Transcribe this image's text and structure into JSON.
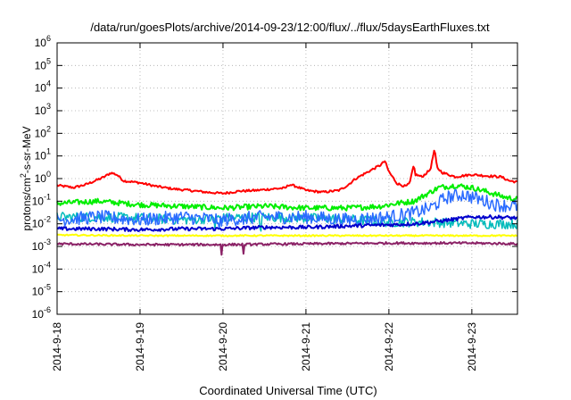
{
  "chart_data": {
    "type": "line",
    "title": "/data/run/goesPlots/archive/2014-09-23/12:00/flux/../flux/5daysEarthFluxes.txt",
    "xlabel": "Coordinated Universal Time (UTC)",
    "ylabel_parts": [
      "protons/cm",
      "2",
      "-s-sr-MeV"
    ],
    "yscale": "log",
    "ylim": [
      1e-06,
      1000000.0
    ],
    "y_ticks": [
      {
        "base": "10",
        "exp": "-6",
        "value": 1e-06
      },
      {
        "base": "10",
        "exp": "-5",
        "value": 1e-05
      },
      {
        "base": "10",
        "exp": "-4",
        "value": 0.0001
      },
      {
        "base": "10",
        "exp": "-3",
        "value": 0.001
      },
      {
        "base": "10",
        "exp": "-2",
        "value": 0.01
      },
      {
        "base": "10",
        "exp": "-1",
        "value": 0.1
      },
      {
        "base": "10",
        "exp": "0",
        "value": 1
      },
      {
        "base": "10",
        "exp": "1",
        "value": 10
      },
      {
        "base": "10",
        "exp": "2",
        "value": 100
      },
      {
        "base": "10",
        "exp": "3",
        "value": 1000
      },
      {
        "base": "10",
        "exp": "4",
        "value": 10000
      },
      {
        "base": "10",
        "exp": "5",
        "value": 100000
      },
      {
        "base": "10",
        "exp": "6",
        "value": 1000000
      }
    ],
    "x_unit": "days since 2014-09-18 00:00 UTC",
    "xlim": [
      0,
      5.55
    ],
    "x_ticks": [
      {
        "label": "2014-9-18",
        "value": 0
      },
      {
        "label": "2014-9-19",
        "value": 1
      },
      {
        "label": "2014-9-20",
        "value": 2
      },
      {
        "label": "2014-9-21",
        "value": 3
      },
      {
        "label": "2014-9-22",
        "value": 4
      },
      {
        "label": "2014-9-23",
        "value": 5
      }
    ],
    "grid": true,
    "grid_style": "dotted",
    "legend": "none",
    "series": [
      {
        "color": "#ff0000",
        "width": 2,
        "noise": 0.05,
        "spikes": [],
        "points": [
          [
            0,
            0.5
          ],
          [
            0.2,
            0.4
          ],
          [
            0.35,
            0.55
          ],
          [
            0.55,
            1.1
          ],
          [
            0.65,
            1.8
          ],
          [
            0.72,
            1.5
          ],
          [
            0.8,
            0.8
          ],
          [
            1.0,
            0.65
          ],
          [
            1.2,
            0.45
          ],
          [
            1.4,
            0.35
          ],
          [
            1.6,
            0.3
          ],
          [
            1.8,
            0.25
          ],
          [
            2.0,
            0.22
          ],
          [
            2.2,
            0.28
          ],
          [
            2.4,
            0.3
          ],
          [
            2.6,
            0.35
          ],
          [
            2.75,
            0.38
          ],
          [
            2.8,
            0.55
          ],
          [
            2.88,
            0.45
          ],
          [
            3.0,
            0.3
          ],
          [
            3.2,
            0.25
          ],
          [
            3.4,
            0.3
          ],
          [
            3.5,
            0.5
          ],
          [
            3.6,
            1.0
          ],
          [
            3.75,
            2.0
          ],
          [
            3.9,
            4.0
          ],
          [
            3.95,
            6.0
          ],
          [
            4.0,
            2.0
          ],
          [
            4.1,
            0.6
          ],
          [
            4.2,
            0.45
          ],
          [
            4.25,
            0.6
          ],
          [
            4.3,
            4.0
          ],
          [
            4.32,
            1.5
          ],
          [
            4.4,
            1.2
          ],
          [
            4.5,
            2.5
          ],
          [
            4.55,
            20.0
          ],
          [
            4.58,
            3.0
          ],
          [
            4.65,
            1.8
          ],
          [
            4.8,
            1.2
          ],
          [
            5.0,
            1.5
          ],
          [
            5.2,
            1.3
          ],
          [
            5.35,
            1.2
          ],
          [
            5.45,
            0.8
          ],
          [
            5.55,
            0.7
          ]
        ]
      },
      {
        "color": "#00ee00",
        "width": 2,
        "noise": 0.12,
        "spikes": [],
        "points": [
          [
            0,
            0.08
          ],
          [
            0.5,
            0.1
          ],
          [
            1.0,
            0.07
          ],
          [
            1.5,
            0.06
          ],
          [
            2.0,
            0.05
          ],
          [
            2.5,
            0.06
          ],
          [
            3.0,
            0.05
          ],
          [
            3.5,
            0.05
          ],
          [
            3.9,
            0.06
          ],
          [
            4.1,
            0.08
          ],
          [
            4.3,
            0.1
          ],
          [
            4.45,
            0.2
          ],
          [
            4.6,
            0.4
          ],
          [
            4.8,
            0.5
          ],
          [
            5.0,
            0.4
          ],
          [
            5.2,
            0.25
          ],
          [
            5.4,
            0.15
          ],
          [
            5.55,
            0.12
          ]
        ]
      },
      {
        "color": "#00bbbb",
        "width": 1.5,
        "noise": 0.22,
        "spikes": [
          1.9,
          2.45
        ],
        "points": [
          [
            0,
            0.02
          ],
          [
            0.5,
            0.02
          ],
          [
            1.0,
            0.018
          ],
          [
            1.5,
            0.015
          ],
          [
            2.0,
            0.018
          ],
          [
            2.5,
            0.02
          ],
          [
            3.0,
            0.018
          ],
          [
            3.5,
            0.016
          ],
          [
            4.0,
            0.012
          ],
          [
            4.5,
            0.012
          ],
          [
            5.0,
            0.01
          ],
          [
            5.55,
            0.01
          ]
        ]
      },
      {
        "color": "#2a6bff",
        "width": 1.5,
        "noise": 0.3,
        "spikes": [
          1.95,
          2.25
        ],
        "points": [
          [
            0,
            0.015
          ],
          [
            0.5,
            0.02
          ],
          [
            1.0,
            0.015
          ],
          [
            1.5,
            0.02
          ],
          [
            2.0,
            0.015
          ],
          [
            2.5,
            0.02
          ],
          [
            3.0,
            0.02
          ],
          [
            3.5,
            0.015
          ],
          [
            4.0,
            0.02
          ],
          [
            4.3,
            0.03
          ],
          [
            4.5,
            0.05
          ],
          [
            4.7,
            0.15
          ],
          [
            4.9,
            0.2
          ],
          [
            5.1,
            0.12
          ],
          [
            5.3,
            0.07
          ],
          [
            5.55,
            0.06
          ]
        ]
      },
      {
        "color": "#0000cc",
        "width": 2,
        "noise": 0.08,
        "spikes": [],
        "points": [
          [
            0,
            0.006
          ],
          [
            0.5,
            0.006
          ],
          [
            1.0,
            0.0055
          ],
          [
            1.5,
            0.006
          ],
          [
            2.0,
            0.006
          ],
          [
            2.5,
            0.007
          ],
          [
            3.0,
            0.007
          ],
          [
            3.5,
            0.008
          ],
          [
            4.0,
            0.009
          ],
          [
            4.3,
            0.01
          ],
          [
            4.6,
            0.013
          ],
          [
            5.0,
            0.02
          ],
          [
            5.3,
            0.02
          ],
          [
            5.55,
            0.018
          ]
        ]
      },
      {
        "color": "#ffff00",
        "width": 2,
        "noise": 0.03,
        "spikes": [],
        "points": [
          [
            0,
            0.0032
          ],
          [
            1.0,
            0.003
          ],
          [
            2.0,
            0.003
          ],
          [
            3.0,
            0.003
          ],
          [
            4.0,
            0.003
          ],
          [
            5.0,
            0.003
          ],
          [
            5.55,
            0.003
          ]
        ]
      },
      {
        "color": "#8b2266",
        "width": 2,
        "noise": 0.05,
        "spikes": [
          1.98,
          2.25
        ],
        "points": [
          [
            0,
            0.0013
          ],
          [
            1.0,
            0.0012
          ],
          [
            2.0,
            0.0012
          ],
          [
            3.0,
            0.0013
          ],
          [
            4.0,
            0.0014
          ],
          [
            5.0,
            0.0014
          ],
          [
            5.55,
            0.0013
          ]
        ]
      }
    ]
  }
}
